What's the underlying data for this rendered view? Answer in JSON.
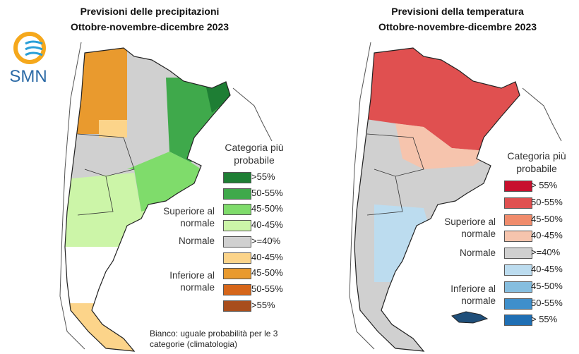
{
  "logo": "SMN",
  "panels": [
    {
      "title": "Previsioni delle precipitazioni",
      "subtitle": "Ottobre-novembre-dicembre 2023",
      "legend_title": "Categoria più probabile",
      "groups": [
        "Superiore al normale",
        "Normale",
        "Inferiore al normale"
      ],
      "items": [
        {
          "label": ">55%",
          "color": "#1e7e34"
        },
        {
          "label": "50-55%",
          "color": "#3fa94b"
        },
        {
          "label": "45-50%",
          "color": "#7fdc6b"
        },
        {
          "label": "40-45%",
          "color": "#ccf5a8"
        },
        {
          "label": ">=40%",
          "color": "#d0d0d0"
        },
        {
          "label": "40-45%",
          "color": "#fcd48a"
        },
        {
          "label": "45-50%",
          "color": "#e99a2e"
        },
        {
          "label": "50-55%",
          "color": "#d6661a"
        },
        {
          "label": ">55%",
          "color": "#a84d1c"
        }
      ],
      "note": "Bianco: uguale probabilità per le 3 categorie (climatologia)"
    },
    {
      "title": "Previsioni della temperatura",
      "subtitle": "Ottobre-novembre-dicembre 2023",
      "legend_title": "Categoria più probabile",
      "groups": [
        "Superiore al normale",
        "Normale",
        "Inferiore al normale"
      ],
      "items": [
        {
          "label": "> 55%",
          "color": "#c8102e"
        },
        {
          "label": "50-55%",
          "color": "#e05050"
        },
        {
          "label": "45-50%",
          "color": "#f08c6c"
        },
        {
          "label": "40-45%",
          "color": "#f6c4ad"
        },
        {
          "label": ">=40%",
          "color": "#d0d0d0"
        },
        {
          "label": "40-45%",
          "color": "#bcdcef"
        },
        {
          "label": "45-50%",
          "color": "#86bedf"
        },
        {
          "label": "50-55%",
          "color": "#3f8fcb"
        },
        {
          "label": "> 55%",
          "color": "#1f6fb4"
        }
      ]
    }
  ]
}
